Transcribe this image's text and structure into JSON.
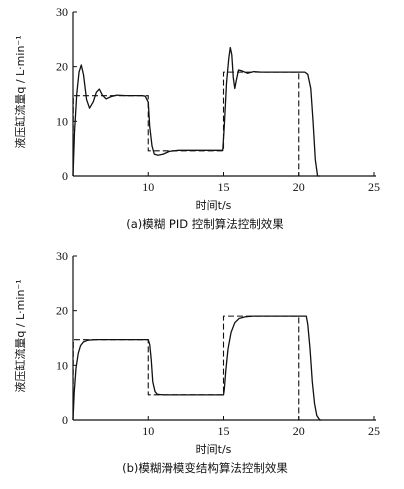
{
  "chart_data": [
    {
      "type": "line",
      "caption": "(a)模糊 PID 控制算法控制效果",
      "xlabel": "时间t/s",
      "ylabel": "液压缸流量q / L·min⁻¹",
      "xlim": [
        5,
        25
      ],
      "ylim": [
        0,
        30
      ],
      "xticks": [
        10,
        15,
        20,
        25
      ],
      "yticks": [
        0,
        10,
        20,
        30
      ],
      "grid": false,
      "series": [
        {
          "style": "dashed",
          "points": [
            [
              5,
              0
            ],
            [
              5.02,
              14.7
            ],
            [
              10,
              14.7
            ],
            [
              10,
              4.6
            ],
            [
              15,
              4.6
            ],
            [
              15,
              19
            ],
            [
              20,
              19
            ],
            [
              20,
              0
            ],
            [
              20.3,
              0
            ]
          ]
        },
        {
          "style": "solid",
          "points": [
            [
              5,
              0
            ],
            [
              5.1,
              8
            ],
            [
              5.25,
              15
            ],
            [
              5.4,
              19
            ],
            [
              5.55,
              20.3
            ],
            [
              5.7,
              18.5
            ],
            [
              5.9,
              14
            ],
            [
              6.1,
              12.4
            ],
            [
              6.35,
              13.6
            ],
            [
              6.55,
              15.3
            ],
            [
              6.75,
              15.9
            ],
            [
              6.95,
              14.8
            ],
            [
              7.2,
              14.1
            ],
            [
              7.5,
              14.5
            ],
            [
              7.9,
              14.8
            ],
            [
              8.5,
              14.7
            ],
            [
              9.6,
              14.7
            ],
            [
              9.8,
              14.6
            ],
            [
              10.0,
              13.5
            ],
            [
              10.1,
              9
            ],
            [
              10.25,
              5.5
            ],
            [
              10.4,
              4
            ],
            [
              10.65,
              3.8
            ],
            [
              11.0,
              4.0
            ],
            [
              11.4,
              4.5
            ],
            [
              12.0,
              4.7
            ],
            [
              14.5,
              4.7
            ],
            [
              14.95,
              4.7
            ],
            [
              15.05,
              9
            ],
            [
              15.2,
              17
            ],
            [
              15.35,
              21.5
            ],
            [
              15.45,
              23.5
            ],
            [
              15.55,
              22.2
            ],
            [
              15.65,
              18
            ],
            [
              15.75,
              16
            ],
            [
              15.85,
              17.5
            ],
            [
              16.0,
              19.4
            ],
            [
              16.25,
              19.2
            ],
            [
              16.6,
              18.8
            ],
            [
              17.0,
              19.1
            ],
            [
              17.5,
              19
            ],
            [
              20.4,
              19
            ],
            [
              20.6,
              18.6
            ],
            [
              20.8,
              16
            ],
            [
              20.95,
              10
            ],
            [
              21.1,
              3
            ],
            [
              21.25,
              0
            ],
            [
              21.4,
              0
            ]
          ]
        }
      ]
    },
    {
      "type": "line",
      "caption": "(b)模糊滑模变结构算法控制效果",
      "xlabel": "时间t/s",
      "ylabel": "液压缸流量q / L·min⁻¹",
      "xlim": [
        5,
        25
      ],
      "ylim": [
        0,
        30
      ],
      "xticks": [
        10,
        15,
        20,
        25
      ],
      "yticks": [
        0,
        10,
        20,
        30
      ],
      "grid": false,
      "series": [
        {
          "style": "dashed",
          "points": [
            [
              5,
              0
            ],
            [
              5.02,
              14.7
            ],
            [
              10,
              14.7
            ],
            [
              10,
              4.6
            ],
            [
              15,
              4.6
            ],
            [
              15,
              19
            ],
            [
              20,
              19
            ],
            [
              20,
              0
            ],
            [
              20.3,
              0
            ]
          ]
        },
        {
          "style": "solid",
          "points": [
            [
              5,
              0
            ],
            [
              5.08,
              5
            ],
            [
              5.2,
              9.5
            ],
            [
              5.35,
              12.2
            ],
            [
              5.5,
              13.6
            ],
            [
              5.7,
              14.3
            ],
            [
              6.0,
              14.6
            ],
            [
              6.5,
              14.7
            ],
            [
              10.0,
              14.7
            ],
            [
              10.1,
              13.8
            ],
            [
              10.2,
              11
            ],
            [
              10.3,
              7
            ],
            [
              10.45,
              5.2
            ],
            [
              10.6,
              4.7
            ],
            [
              11.0,
              4.6
            ],
            [
              15.0,
              4.6
            ],
            [
              15.05,
              5.5
            ],
            [
              15.15,
              9
            ],
            [
              15.3,
              13
            ],
            [
              15.5,
              16
            ],
            [
              15.75,
              17.8
            ],
            [
              16.05,
              18.6
            ],
            [
              16.5,
              18.9
            ],
            [
              17.0,
              19
            ],
            [
              20.5,
              19
            ],
            [
              20.6,
              17.5
            ],
            [
              20.75,
              13
            ],
            [
              20.9,
              7
            ],
            [
              21.05,
              3
            ],
            [
              21.2,
              0.8
            ],
            [
              21.4,
              0
            ],
            [
              21.5,
              0
            ]
          ]
        }
      ]
    }
  ]
}
